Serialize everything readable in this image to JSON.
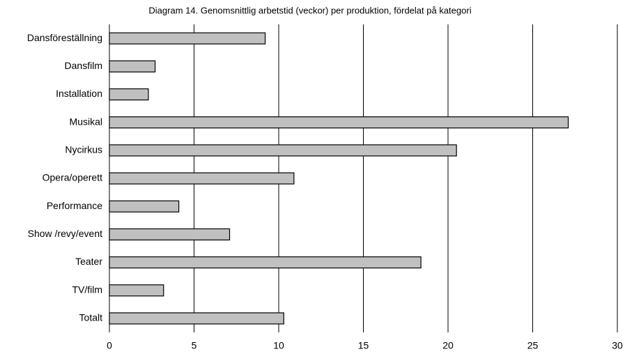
{
  "chart_data": {
    "type": "barh",
    "title": "Diagram 14. Genomsnittlig arbetstid (veckor) per produktion, fördelat på kategori",
    "categories": [
      "Dansföreställning",
      "Dansfilm",
      "Installation",
      "Musikal",
      "Nycirkus",
      "Opera/operett",
      "Performance",
      "Show /revy/event",
      "Teater",
      "TV/film",
      "Totalt"
    ],
    "values": [
      9.2,
      2.7,
      2.3,
      27.1,
      20.5,
      10.9,
      4.1,
      7.1,
      18.4,
      3.2,
      10.3
    ],
    "color": "#c0c0c0",
    "xlim": [
      0,
      30
    ],
    "xticks": [
      0,
      5,
      10,
      15,
      20,
      25,
      30
    ],
    "grid": true
  }
}
